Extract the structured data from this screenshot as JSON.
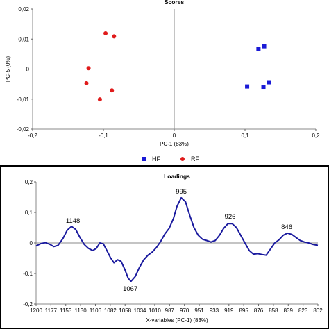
{
  "chart_data": [
    {
      "type": "scatter",
      "title": "Scores",
      "xlabel": "PC-1 (83%)",
      "ylabel": "PC-5 (0%)",
      "xlim": [
        -0.2,
        0.2
      ],
      "ylim": [
        -0.02,
        0.02
      ],
      "xticks": [
        -0.2,
        -0.1,
        0,
        0.1,
        0.2
      ],
      "xtick_labels": [
        "-0,2",
        "-0,1",
        "0",
        "0,1",
        "0,2"
      ],
      "yticks": [
        0.02,
        0.01,
        0,
        -0.01,
        -0.02
      ],
      "ytick_labels": [
        "0,02",
        "0,01",
        "0",
        "-0,01",
        "-0,02"
      ],
      "grid": false,
      "legend_position": "bottom-center",
      "series": [
        {
          "name": "HF",
          "marker": "square",
          "color": "#1a1ad6",
          "points": [
            [
              0.119,
              0.0068
            ],
            [
              0.127,
              0.0076
            ],
            [
              0.103,
              -0.0058
            ],
            [
              0.126,
              -0.0059
            ],
            [
              0.134,
              -0.0044
            ]
          ]
        },
        {
          "name": "RF",
          "marker": "circle",
          "color": "#e01b1b",
          "points": [
            [
              -0.097,
              0.0119
            ],
            [
              -0.085,
              0.0109
            ],
            [
              -0.121,
              0.0003
            ],
            [
              -0.124,
              -0.0047
            ],
            [
              -0.088,
              -0.0071
            ],
            [
              -0.105,
              -0.0101
            ]
          ]
        }
      ]
    },
    {
      "type": "line",
      "title": "Loadings",
      "xlabel": "X-variables (PC-1) (83%)",
      "ylabel": "",
      "xlim": [
        1200,
        802
      ],
      "ylim": [
        -0.2,
        0.2
      ],
      "yticks": [
        0.2,
        0.1,
        0,
        -0.1,
        -0.2
      ],
      "ytick_labels": [
        "0,2",
        "0,1",
        "0",
        "-0,1",
        "-0,2"
      ],
      "xtick_labels": [
        "1200",
        "1177",
        "1153",
        "1130",
        "1106",
        "1082",
        "1058",
        "1034",
        "1010",
        "987",
        "970",
        "951",
        "933",
        "919",
        "895",
        "876",
        "858",
        "839",
        "823",
        "802"
      ],
      "grid": false,
      "annotations": [
        {
          "text": "1148",
          "x": 1148,
          "y": 0.052
        },
        {
          "text": "995",
          "x": 995,
          "y": 0.148
        },
        {
          "text": "926",
          "x": 926,
          "y": 0.066
        },
        {
          "text": "846",
          "x": 846,
          "y": 0.032
        },
        {
          "text": "1067",
          "x": 1067,
          "y": -0.125
        }
      ],
      "series": [
        {
          "color": "#1a1a9e",
          "points": [
            [
              1200,
              -0.01
            ],
            [
              1193,
              -0.002
            ],
            [
              1187,
              0.001
            ],
            [
              1181,
              -0.004
            ],
            [
              1175,
              -0.012
            ],
            [
              1169,
              -0.008
            ],
            [
              1162,
              0.015
            ],
            [
              1156,
              0.042
            ],
            [
              1150,
              0.054
            ],
            [
              1144,
              0.044
            ],
            [
              1138,
              0.018
            ],
            [
              1132,
              -0.005
            ],
            [
              1126,
              -0.018
            ],
            [
              1120,
              -0.025
            ],
            [
              1115,
              -0.018
            ],
            [
              1110,
              0.0
            ],
            [
              1105,
              -0.003
            ],
            [
              1100,
              -0.025
            ],
            [
              1095,
              -0.048
            ],
            [
              1090,
              -0.065
            ],
            [
              1085,
              -0.055
            ],
            [
              1080,
              -0.06
            ],
            [
              1075,
              -0.085
            ],
            [
              1070,
              -0.115
            ],
            [
              1066,
              -0.126
            ],
            [
              1060,
              -0.11
            ],
            [
              1054,
              -0.08
            ],
            [
              1048,
              -0.055
            ],
            [
              1042,
              -0.04
            ],
            [
              1036,
              -0.03
            ],
            [
              1030,
              -0.015
            ],
            [
              1024,
              0.005
            ],
            [
              1018,
              0.03
            ],
            [
              1012,
              0.048
            ],
            [
              1006,
              0.08
            ],
            [
              1001,
              0.12
            ],
            [
              995,
              0.148
            ],
            [
              989,
              0.135
            ],
            [
              983,
              0.09
            ],
            [
              977,
              0.05
            ],
            [
              971,
              0.025
            ],
            [
              965,
              0.012
            ],
            [
              959,
              0.008
            ],
            [
              953,
              0.003
            ],
            [
              947,
              0.008
            ],
            [
              941,
              0.025
            ],
            [
              935,
              0.048
            ],
            [
              929,
              0.063
            ],
            [
              923,
              0.063
            ],
            [
              917,
              0.05
            ],
            [
              911,
              0.025
            ],
            [
              905,
              0.0
            ],
            [
              899,
              -0.025
            ],
            [
              893,
              -0.037
            ],
            [
              887,
              -0.035
            ],
            [
              881,
              -0.038
            ],
            [
              875,
              -0.04
            ],
            [
              869,
              -0.02
            ],
            [
              863,
              0.0
            ],
            [
              857,
              0.01
            ],
            [
              851,
              0.025
            ],
            [
              845,
              0.032
            ],
            [
              839,
              0.028
            ],
            [
              833,
              0.018
            ],
            [
              827,
              0.008
            ],
            [
              821,
              0.003
            ],
            [
              815,
              0.0
            ],
            [
              809,
              -0.005
            ],
            [
              802,
              -0.008
            ]
          ]
        }
      ]
    }
  ]
}
